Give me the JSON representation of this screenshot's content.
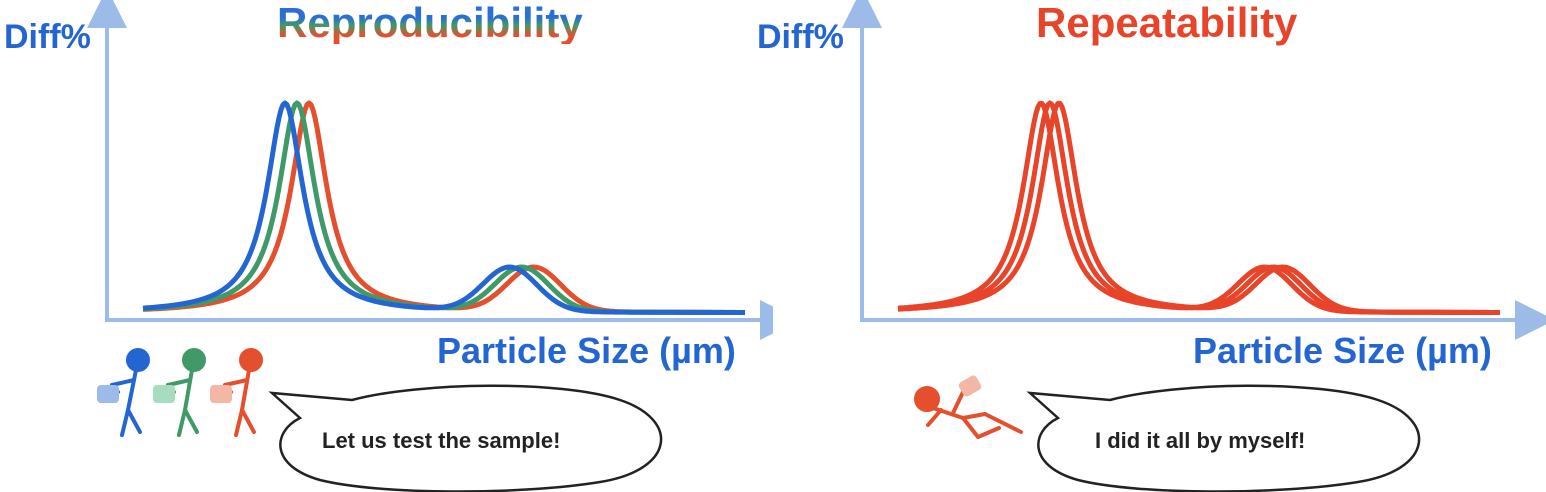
{
  "colors": {
    "axis": "#9dbbe9",
    "label_blue": "#2366d1",
    "operator_blue": "#2366d1",
    "operator_green": "#3f9a68",
    "operator_red": "#e4502e",
    "repeat_red": "#e8442a"
  },
  "left_panel": {
    "title": "Reproducibility",
    "y_axis_label": "Diff%",
    "x_axis_label": "Particle Size (µm)",
    "speech": "Let us test the sample!",
    "operators": [
      "blue-person-icon",
      "green-person-icon",
      "red-person-icon"
    ]
  },
  "right_panel": {
    "title": "Repeatability",
    "y_axis_label": "Diff%",
    "x_axis_label": "Particle Size (µm)",
    "speech": "I did it all by myself!",
    "operators": [
      "reclining-red-person-icon"
    ]
  },
  "chart_data": [
    {
      "type": "line",
      "title": "Reproducibility",
      "xlabel": "Particle Size (µm)",
      "ylabel": "Diff%",
      "shape": "bimodal distribution, tall primary peak and small secondary peak",
      "series": [
        {
          "color": "#2366d1",
          "peak_shift": 0
        },
        {
          "color": "#3f9a68",
          "peak_shift": 1
        },
        {
          "color": "#e4502e",
          "peak_shift": 2
        }
      ]
    },
    {
      "type": "line",
      "title": "Repeatability",
      "xlabel": "Particle Size (µm)",
      "ylabel": "Diff%",
      "shape": "bimodal distribution, tall primary peak and small secondary peak",
      "series": [
        {
          "color": "#e8442a",
          "peak_shift": 0
        },
        {
          "color": "#e8442a",
          "peak_shift": 1
        },
        {
          "color": "#e8442a",
          "peak_shift": 2
        }
      ]
    }
  ]
}
